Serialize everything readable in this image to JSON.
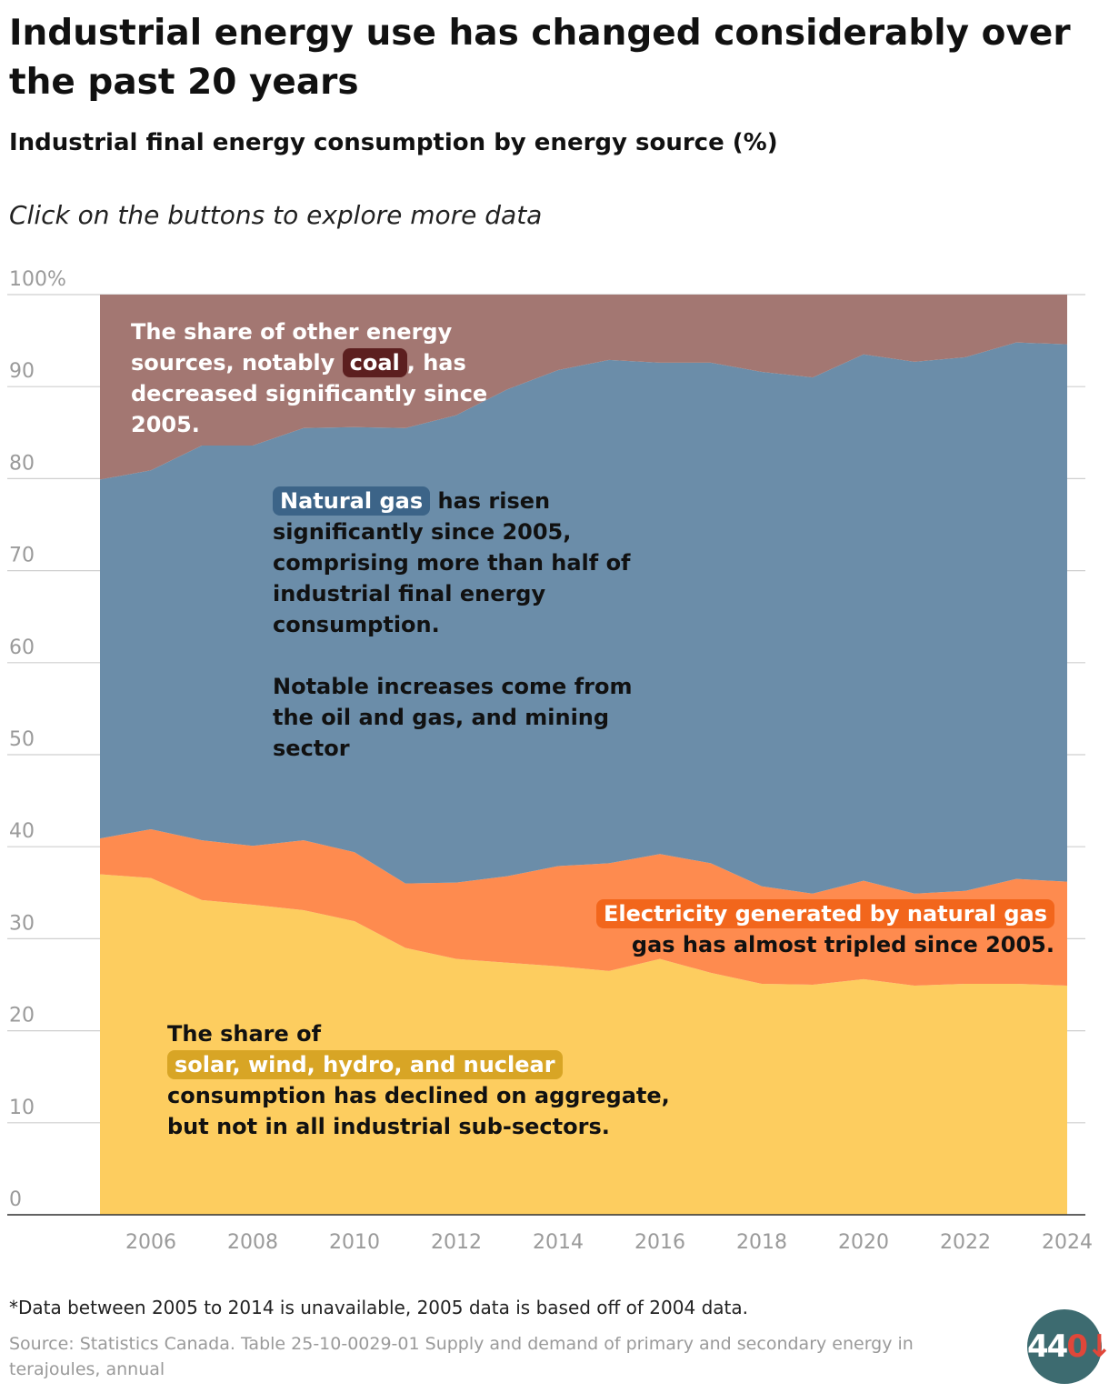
{
  "title": "Industrial energy use has changed considerably over the past 20 years",
  "subtitle": "Industrial final energy consumption by energy source (%)",
  "instructions": "Click on the buttons to explore more data",
  "chart_data": {
    "type": "area",
    "stacked": true,
    "x": [
      2005,
      2006,
      2007,
      2008,
      2009,
      2010,
      2011,
      2012,
      2013,
      2014,
      2015,
      2016,
      2017,
      2018,
      2019,
      2020,
      2021,
      2022,
      2023,
      2024
    ],
    "series": [
      {
        "name": "Solar, wind, hydro, and nuclear",
        "color": "#fdcd5f",
        "values": [
          37,
          36.6,
          34.2,
          33.7,
          33.1,
          31.9,
          29,
          27.8,
          27.4,
          27,
          26.5,
          27.8,
          26.3,
          25.1,
          25,
          25.6,
          24.9,
          25.1,
          25.1,
          24.9
        ]
      },
      {
        "name": "Electricity generated by natural gas",
        "color": "#fe8b4f",
        "values": [
          3.9,
          5.3,
          6.5,
          6.4,
          7.6,
          7.5,
          7,
          8.3,
          9.4,
          10.9,
          11.7,
          11.4,
          11.9,
          10.6,
          9.9,
          10.7,
          10,
          10.1,
          11.4,
          11.3
        ]
      },
      {
        "name": "Natural gas",
        "color": "#6b8da9",
        "values": [
          39,
          39,
          42.9,
          43.5,
          44.8,
          46.2,
          49.5,
          50.8,
          52.9,
          53.9,
          54.7,
          53.4,
          54.4,
          55.9,
          56.1,
          57.2,
          57.8,
          58,
          58.3,
          58.4
        ]
      },
      {
        "name": "Other sources (notably coal)",
        "color": "#a37772",
        "values": [
          20.1,
          19.1,
          16.4,
          16.4,
          14.5,
          14.4,
          14.5,
          13.1,
          10.3,
          8.2,
          7.1,
          7.4,
          7.4,
          8.4,
          9,
          6.5,
          7.3,
          6.8,
          5.2,
          5.4
        ]
      }
    ],
    "ylim": [
      0,
      100
    ],
    "yticks": [
      "0",
      "10",
      "20",
      "30",
      "40",
      "50",
      "60",
      "70",
      "80",
      "90",
      "100%"
    ],
    "ytick_values": [
      0,
      10,
      20,
      30,
      40,
      50,
      60,
      70,
      80,
      90,
      100
    ],
    "xticks": [
      "2006",
      "2008",
      "2010",
      "2012",
      "2014",
      "2016",
      "2018",
      "2020",
      "2022",
      "2024"
    ],
    "xtick_values": [
      2006,
      2008,
      2010,
      2012,
      2014,
      2016,
      2018,
      2020,
      2022,
      2024
    ],
    "xlabel": "",
    "ylabel": ""
  },
  "annotations": {
    "coal": {
      "before": "The share of other energy sources, notably",
      "tag": "coal",
      "after": ", has decreased significantly since 2005.",
      "tag_color": "#5c1f1f"
    },
    "natural_gas": {
      "tag": "Natural gas",
      "after": " has risen significantly since 2005, comprising more than half of industrial final energy consumption.",
      "tag_color": "#3c6488"
    },
    "notable": {
      "text": "Notable increases come from the oil and gas, and mining sector"
    },
    "electricity": {
      "tag": "Electricity generated by natural gas",
      "after": "gas has almost tripled since 2005.",
      "tag_color": "#f2661c"
    },
    "renewables": {
      "before": "The share of",
      "tag": "solar, wind, hydro, and nuclear",
      "after": " consumption has declined on aggregate, but not in all industrial sub-sectors.",
      "tag_color": "#d8a525"
    }
  },
  "footnote": "*Data between 2005 to 2014 is unavailable, 2005 data is based off of 2004 data.",
  "source": "Source: Statistics Canada. Table 25-10-0029-01 Supply and demand of primary and secondary energy in terajoules, annual",
  "logo": {
    "text": "44",
    "arrow": "0↓"
  }
}
